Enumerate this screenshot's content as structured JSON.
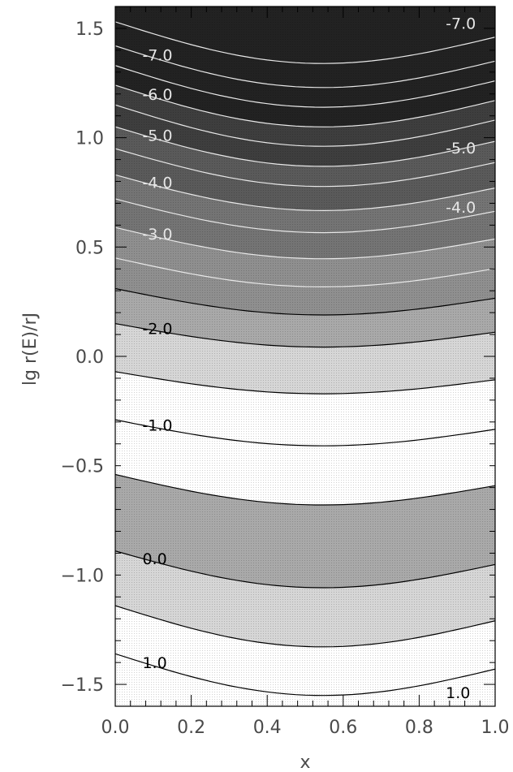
{
  "chart_data": {
    "type": "contour",
    "title": "",
    "xlabel": "x",
    "ylabel": "lg r(E)/rJ",
    "xlim": [
      0.0,
      1.0
    ],
    "ylim": [
      -1.6,
      1.6
    ],
    "xticks": [
      "0.0",
      "0.2",
      "0.4",
      "0.6",
      "0.8",
      "1.0"
    ],
    "yticks": [
      "-1.5",
      "-1.0",
      "-0.5",
      "0.0",
      "0.5",
      "1.0",
      "1.5"
    ],
    "grid": false,
    "contours": [
      {
        "y0": -1.36,
        "label": "1.0"
      },
      {
        "y0": -1.14
      },
      {
        "y0": -0.89,
        "label": "0.0"
      },
      {
        "y0": -0.54
      },
      {
        "y0": -0.29,
        "label": "-1.0"
      },
      {
        "y0": -0.07
      },
      {
        "y0": 0.15,
        "label": "-2.0"
      },
      {
        "y0": 0.31
      },
      {
        "y0": 0.45
      },
      {
        "y0": 0.59,
        "label": "-3.0"
      },
      {
        "y0": 0.72
      },
      {
        "y0": 0.83,
        "label": "-4.0"
      },
      {
        "y0": 0.95
      },
      {
        "y0": 1.05,
        "label": "-5.0"
      },
      {
        "y0": 1.15
      },
      {
        "y0": 1.24,
        "label": "-6.0"
      },
      {
        "y0": 1.33
      },
      {
        "y0": 1.42,
        "label": "-7.0"
      },
      {
        "y0": 1.53
      }
    ],
    "right_labels": [
      {
        "y": -1.54,
        "label": "1.0"
      },
      {
        "y": 0.95,
        "label": "-5.0"
      },
      {
        "y": 0.68,
        "label": "-4.0"
      },
      {
        "y": 1.52,
        "label": "-7.0"
      }
    ],
    "bands": [
      {
        "from": -1.6,
        "to": -1.14,
        "shade": "white"
      },
      {
        "from": -1.14,
        "to": -0.89,
        "shade": "light"
      },
      {
        "from": -0.89,
        "to": -0.54,
        "shade": "medium"
      },
      {
        "from": -0.54,
        "to": -0.07,
        "shade": "white"
      },
      {
        "from": -0.07,
        "to": 0.15,
        "shade": "light"
      },
      {
        "from": 0.15,
        "to": 0.31,
        "shade": "medium"
      },
      {
        "from": 0.31,
        "to": 0.59,
        "shade": "medium-dark"
      },
      {
        "from": 0.59,
        "to": 0.83,
        "shade": "dark"
      },
      {
        "from": 0.83,
        "to": 1.05,
        "shade": "darker"
      },
      {
        "from": 1.05,
        "to": 1.24,
        "shade": "darkest"
      },
      {
        "from": 1.24,
        "to": 1.6,
        "shade": "black"
      }
    ],
    "shades": {
      "white": "#ffffff",
      "light": "#d6d6d6",
      "medium": "#a9a9a9",
      "medium-dark": "#8f8f8f",
      "dark": "#747474",
      "darker": "#5a5a5a",
      "darkest": "#3e3e3e",
      "black": "#222222"
    }
  }
}
